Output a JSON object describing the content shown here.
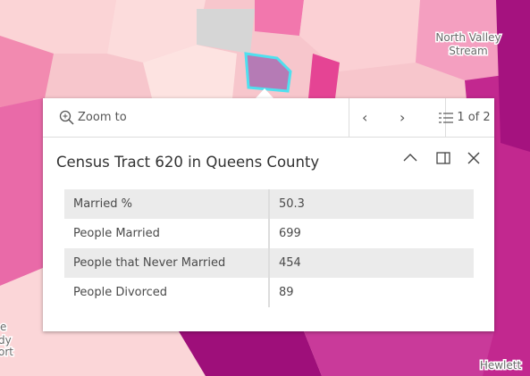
{
  "map_labels": [
    "North Valley",
    "Stream",
    "Hewlett",
    "e",
    "dy",
    "ort"
  ],
  "popup": {
    "zoom": "Zoom to",
    "pager": "1 of 2",
    "title": "Census Tract 620 in Queens County",
    "table": {
      "rows": [
        [
          "Married %",
          "50.3"
        ],
        [
          "People Married",
          "699"
        ],
        [
          "People that Never Married",
          "454"
        ],
        [
          "People Divorced",
          "89"
        ]
      ]
    }
  }
}
